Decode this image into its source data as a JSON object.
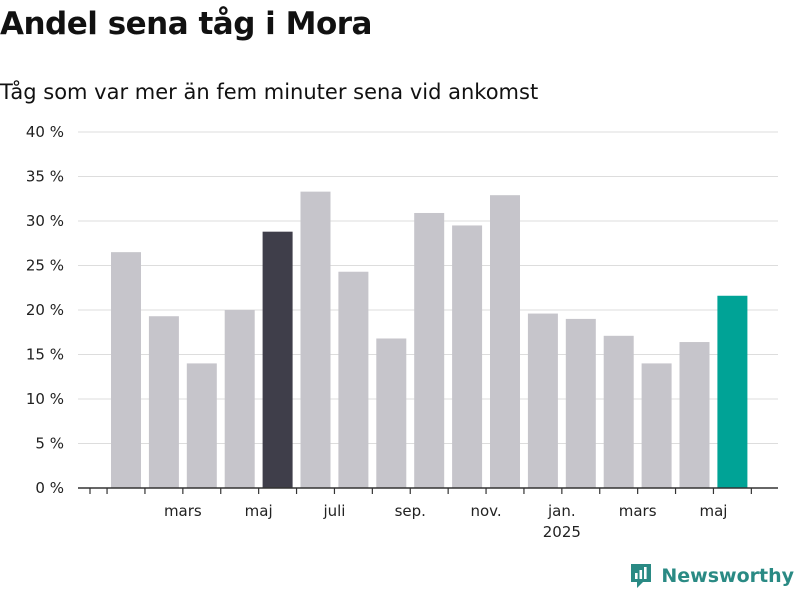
{
  "title": "Andel sena tåg i Mora",
  "subtitle": "Tåg som var mer än fem minuter sena vid ankomst",
  "brand": "Newsworthy",
  "colors": {
    "bar_default": "#c6c5cb",
    "bar_highlight": "#3f3e4a",
    "bar_latest": "#00a396",
    "grid": "#dddddd",
    "axis": "#333333",
    "brand": "#2a8a84"
  },
  "chart_data": {
    "type": "bar",
    "title": "Andel sena tåg i Mora",
    "subtitle": "Tåg som var mer än fem minuter sena vid ankomst",
    "ylim": [
      0,
      40
    ],
    "y_ticks": [
      "0 %",
      "5 %",
      "10 %",
      "15 %",
      "20 %",
      "25 %",
      "30 %",
      "35 %",
      "40 %"
    ],
    "x_tick_labels": [
      {
        "label": "mars",
        "after_bar": 1
      },
      {
        "label": "maj",
        "after_bar": 3
      },
      {
        "label": "juli",
        "after_bar": 5
      },
      {
        "label": "sep.",
        "after_bar": 7
      },
      {
        "label": "nov.",
        "after_bar": 9
      },
      {
        "label": "jan.",
        "after_bar": 11,
        "sub": "2025"
      },
      {
        "label": "mars",
        "after_bar": 13
      },
      {
        "label": "maj",
        "after_bar": 15
      }
    ],
    "values": [
      26.5,
      19.3,
      14.0,
      20.0,
      28.8,
      33.3,
      24.3,
      16.8,
      30.9,
      29.5,
      32.9,
      19.6,
      19.0,
      17.1,
      14.0,
      16.4,
      21.6
    ],
    "highlight_index": 4,
    "latest_index": 16,
    "grid": true
  }
}
